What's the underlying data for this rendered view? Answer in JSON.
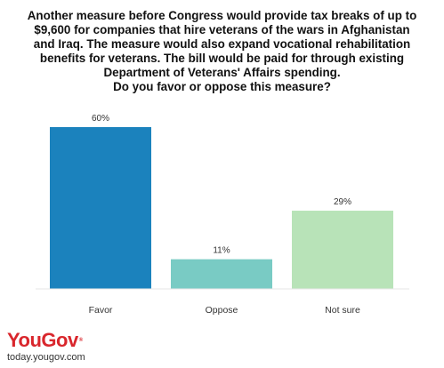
{
  "chart_data": {
    "type": "bar",
    "title_lines": [
      "Another measure before Congress would provide tax breaks of up to",
      "$9,600 for companies that hire veterans of the wars in Afghanistan",
      "and Iraq. The measure would also expand vocational rehabilitation",
      "benefits for veterans. The bill would be paid for through existing",
      "Department of Veterans' Affairs spending.",
      "Do you favor or oppose this measure?"
    ],
    "categories": [
      "Favor",
      "Oppose",
      "Not sure"
    ],
    "values": [
      60,
      11,
      29
    ],
    "value_labels": [
      "60%",
      "11%",
      "29%"
    ],
    "colors": [
      "#1b82bd",
      "#79cbc4",
      "#b8e3b8"
    ],
    "ylim": [
      0,
      60
    ],
    "grid": false,
    "legend": "none"
  },
  "brand": {
    "logo": "YouGov",
    "registered": "®",
    "site": "today.yougov.com",
    "logo_color": "#d9262c"
  }
}
